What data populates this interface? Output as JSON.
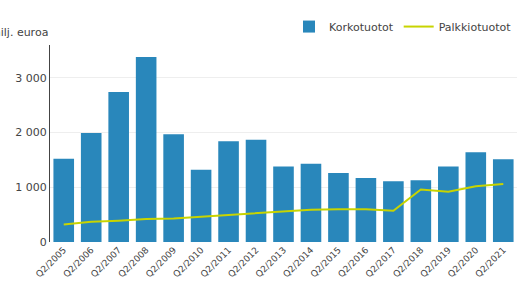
{
  "chart_data": {
    "type": "bar",
    "ylabel": "milj. euroa",
    "categories": [
      "Q2/2005",
      "Q2/2006",
      "Q2/2007",
      "Q2/2008",
      "Q2/2009",
      "Q2/2010",
      "Q2/2011",
      "Q2/2012",
      "Q2/2013",
      "Q2/2014",
      "Q2/2015",
      "Q2/2016",
      "Q2/2017",
      "Q2/2018",
      "Q2/2019",
      "Q2/2020",
      "Q2/2021"
    ],
    "series": [
      {
        "name": "Korkotuotot",
        "type": "bar",
        "color": "#2987bb",
        "values": [
          1520,
          1990,
          2740,
          3380,
          1970,
          1320,
          1840,
          1870,
          1380,
          1430,
          1260,
          1170,
          1110,
          1130,
          1380,
          1640,
          1510
        ]
      },
      {
        "name": "Palkkiotuotot",
        "type": "line",
        "color": "#c8d400",
        "values": [
          320,
          370,
          390,
          420,
          430,
          460,
          490,
          520,
          560,
          590,
          600,
          600,
          570,
          960,
          920,
          1020,
          1060
        ]
      }
    ],
    "ylim": [
      0,
      3600
    ],
    "yticks": [
      0,
      {
        "value": 1000,
        "label": "1 000"
      },
      {
        "value": 2000,
        "label": "2 000"
      },
      {
        "value": 3000,
        "label": "3 000"
      }
    ],
    "grid": true,
    "legend": "upper right"
  }
}
